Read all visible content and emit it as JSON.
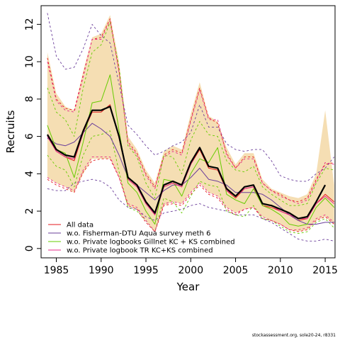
{
  "chart_data": {
    "type": "line",
    "xlabel": "Year",
    "ylabel": "Recruits",
    "xlim": [
      1983.3,
      2016.1
    ],
    "ylim": [
      -0.5,
      13.0
    ],
    "xticks": [
      1985,
      1990,
      1995,
      2000,
      2005,
      2010,
      2015
    ],
    "yticks": [
      0,
      2,
      4,
      6,
      8,
      10,
      12
    ],
    "grid": false,
    "legend_position": "bottom-left",
    "x": [
      1984,
      1985,
      1986,
      1987,
      1988,
      1989,
      1990,
      1991,
      1992,
      1993,
      1994,
      1995,
      1996,
      1997,
      1998,
      1999,
      2000,
      2001,
      2002,
      2003,
      2004,
      2005,
      2006,
      2007,
      2008,
      2009,
      2010,
      2011,
      2012,
      2013,
      2014,
      2015,
      2016
    ],
    "band": {
      "color": "#f5deb3",
      "lower": [
        3.8,
        3.5,
        3.3,
        3.0,
        4.0,
        4.8,
        4.8,
        4.8,
        3.8,
        2.3,
        2.1,
        1.5,
        0.9,
        2.3,
        2.5,
        2.4,
        3.0,
        3.5,
        3.0,
        2.8,
        2.2,
        1.9,
        2.1,
        2.2,
        1.7,
        1.5,
        1.3,
        1.0,
        0.9,
        1.0,
        1.5,
        1.7,
        1.3
      ],
      "upper": [
        10.5,
        8.3,
        7.6,
        7.4,
        9.5,
        11.3,
        11.5,
        12.5,
        10.0,
        6.0,
        5.3,
        4.2,
        3.5,
        5.2,
        5.5,
        5.3,
        7.2,
        8.9,
        7.1,
        6.8,
        5.4,
        4.5,
        5.1,
        5.1,
        3.7,
        3.2,
        3.0,
        2.8,
        2.7,
        2.9,
        4.0,
        7.4,
        3.4
      ]
    },
    "series": [
      {
        "name": "",
        "color": "#000000",
        "width": 2.2,
        "dash": "",
        "values": [
          6.1,
          5.3,
          5.0,
          4.9,
          6.3,
          7.4,
          7.4,
          7.6,
          6.0,
          3.8,
          3.4,
          2.5,
          1.9,
          3.4,
          3.6,
          3.4,
          4.6,
          5.4,
          4.4,
          4.3,
          3.2,
          2.8,
          3.3,
          3.4,
          2.4,
          2.3,
          2.1,
          1.9,
          1.6,
          1.7,
          2.5,
          3.4,
          null
        ]
      },
      {
        "name": "All data",
        "color": "#e41a1c",
        "width": 1,
        "dash": "",
        "values": [
          6.0,
          5.2,
          4.9,
          4.7,
          6.2,
          7.3,
          7.3,
          7.7,
          5.9,
          3.7,
          3.3,
          2.4,
          1.8,
          3.3,
          3.5,
          3.3,
          4.5,
          5.3,
          4.3,
          4.2,
          3.1,
          2.7,
          3.2,
          3.3,
          2.3,
          2.2,
          2.0,
          1.8,
          1.5,
          1.6,
          2.4,
          2.9,
          2.5
        ]
      },
      {
        "name": "w.o. Fisherman-DTU Aqua survey meth 6",
        "color": "#6a3d9a",
        "width": 1,
        "dash": "",
        "values": [
          5.9,
          5.6,
          5.5,
          5.7,
          6.2,
          6.7,
          6.4,
          6.0,
          5.0,
          3.8,
          3.4,
          3.0,
          2.6,
          3.1,
          3.4,
          3.4,
          3.8,
          4.3,
          3.7,
          3.6,
          3.4,
          3.0,
          3.0,
          3.0,
          2.9,
          2.6,
          2.2,
          1.8,
          1.5,
          1.3,
          1.3,
          1.4,
          1.4
        ]
      },
      {
        "name": "w.o. Private logbooks Gillnet KC + KS combined",
        "color": "#66cc00",
        "width": 1,
        "dash": "",
        "values": [
          6.6,
          5.3,
          5.1,
          3.8,
          5.7,
          7.8,
          7.9,
          9.3,
          6.3,
          3.5,
          3.0,
          2.0,
          1.3,
          3.7,
          3.6,
          2.8,
          4.0,
          4.8,
          4.6,
          5.4,
          2.9,
          2.6,
          2.4,
          3.2,
          2.3,
          2.1,
          1.8,
          1.3,
          1.2,
          1.3,
          2.2,
          2.7,
          2.2
        ]
      },
      {
        "name": "w.o. Private logbook TR KC+KS combined",
        "color": "#e7298a",
        "width": 1,
        "dash": "",
        "values": [
          6.0,
          5.2,
          4.9,
          4.8,
          6.2,
          7.4,
          7.4,
          7.6,
          6.0,
          3.7,
          3.3,
          2.4,
          1.8,
          3.3,
          3.5,
          3.3,
          4.5,
          5.4,
          4.4,
          4.3,
          3.1,
          2.8,
          3.2,
          3.3,
          2.4,
          2.3,
          2.0,
          1.8,
          1.6,
          1.6,
          2.4,
          2.8,
          2.4
        ]
      },
      {
        "name": "",
        "color": "#e41a1c",
        "width": 0.9,
        "dash": "3,3",
        "values": [
          10.2,
          8.0,
          7.5,
          7.4,
          9.3,
          11.2,
          11.3,
          12.3,
          9.5,
          5.7,
          5.1,
          4.0,
          3.3,
          5.0,
          5.3,
          5.1,
          6.9,
          8.6,
          7.0,
          6.7,
          5.1,
          4.3,
          4.9,
          4.9,
          3.5,
          3.1,
          2.9,
          2.6,
          2.5,
          2.7,
          3.7,
          4.5,
          4.6
        ]
      },
      {
        "name": "",
        "color": "#e41a1c",
        "width": 0.9,
        "dash": "3,3",
        "values": [
          3.7,
          3.4,
          3.2,
          3.0,
          4.1,
          4.7,
          4.8,
          4.8,
          3.8,
          2.3,
          2.1,
          1.4,
          0.9,
          2.3,
          2.4,
          2.3,
          2.9,
          3.4,
          2.9,
          2.7,
          2.1,
          1.8,
          2.1,
          2.2,
          1.6,
          1.5,
          1.3,
          1.0,
          0.9,
          1.0,
          1.5,
          1.7,
          1.3
        ]
      },
      {
        "name": "",
        "color": "#6a3d9a",
        "width": 0.9,
        "dash": "3,3",
        "values": [
          12.6,
          10.3,
          9.6,
          9.7,
          10.7,
          12.0,
          11.4,
          11.0,
          8.8,
          6.6,
          6.1,
          5.5,
          5.0,
          5.2,
          5.5,
          5.7,
          6.2,
          7.7,
          6.5,
          6.5,
          5.6,
          5.3,
          5.2,
          5.3,
          5.3,
          4.7,
          3.9,
          3.7,
          3.6,
          3.6,
          4.0,
          4.3,
          4.9
        ]
      },
      {
        "name": "",
        "color": "#6a3d9a",
        "width": 0.9,
        "dash": "3,3",
        "values": [
          3.2,
          3.1,
          3.1,
          3.5,
          3.6,
          3.7,
          3.6,
          3.3,
          2.6,
          2.2,
          2.1,
          1.7,
          1.5,
          1.9,
          2.0,
          2.1,
          2.3,
          2.4,
          2.2,
          2.1,
          2.0,
          1.8,
          1.8,
          1.8,
          1.6,
          1.4,
          1.1,
          0.8,
          0.5,
          0.4,
          0.4,
          0.5,
          0.4
        ]
      },
      {
        "name": "",
        "color": "#66cc00",
        "width": 0.9,
        "dash": "3,3",
        "values": [
          8.6,
          7.3,
          6.9,
          6.0,
          8.6,
          10.5,
          10.9,
          12.1,
          9.7,
          5.5,
          4.9,
          3.5,
          2.7,
          5.0,
          4.9,
          4.0,
          5.8,
          6.8,
          6.1,
          6.0,
          4.7,
          4.2,
          4.1,
          4.4,
          3.3,
          2.9,
          2.6,
          2.3,
          2.3,
          2.4,
          3.5,
          4.3,
          4.2
        ]
      },
      {
        "name": "",
        "color": "#66cc00",
        "width": 0.9,
        "dash": "3,3",
        "values": [
          5.0,
          4.4,
          4.2,
          3.3,
          5.0,
          6.0,
          6.1,
          6.3,
          4.1,
          2.2,
          2.0,
          1.5,
          0.9,
          2.7,
          2.5,
          1.9,
          2.8,
          3.6,
          3.4,
          3.3,
          2.0,
          1.8,
          1.7,
          2.3,
          1.6,
          1.5,
          1.2,
          0.9,
          0.8,
          0.9,
          1.4,
          1.6,
          1.1
        ]
      },
      {
        "name": "",
        "color": "#e7298a",
        "width": 0.9,
        "dash": "3,3",
        "values": [
          10.0,
          7.9,
          7.4,
          7.3,
          9.2,
          11.2,
          11.2,
          12.2,
          9.4,
          5.6,
          5.0,
          3.9,
          3.2,
          4.9,
          5.2,
          5.0,
          6.8,
          8.5,
          6.9,
          6.9,
          5.0,
          4.3,
          4.8,
          4.8,
          3.5,
          3.1,
          2.8,
          2.6,
          2.4,
          2.6,
          3.6,
          4.6,
          4.5
        ]
      },
      {
        "name": "",
        "color": "#e7298a",
        "width": 0.9,
        "dash": "3,3",
        "values": [
          3.8,
          3.5,
          3.3,
          3.1,
          4.2,
          4.9,
          4.9,
          4.9,
          3.8,
          2.4,
          2.2,
          1.5,
          0.9,
          2.4,
          2.5,
          2.4,
          3.0,
          3.5,
          3.0,
          2.8,
          2.2,
          1.9,
          2.1,
          2.2,
          1.7,
          1.5,
          1.3,
          1.0,
          1.0,
          1.1,
          1.6,
          1.8,
          1.4
        ]
      }
    ],
    "legend": [
      {
        "label": "All data",
        "color": "#e41a1c"
      },
      {
        "label": "w.o. Fisherman-DTU Aqua survey meth 6",
        "color": "#6a3d9a"
      },
      {
        "label": "w.o. Private logbooks Gillnet KC + KS combined",
        "color": "#66cc00"
      },
      {
        "label": "w.o. Private logbook TR KC+KS combined",
        "color": "#e7298a"
      }
    ]
  },
  "footer": "stockassessment.org, sole20-24, r8331"
}
